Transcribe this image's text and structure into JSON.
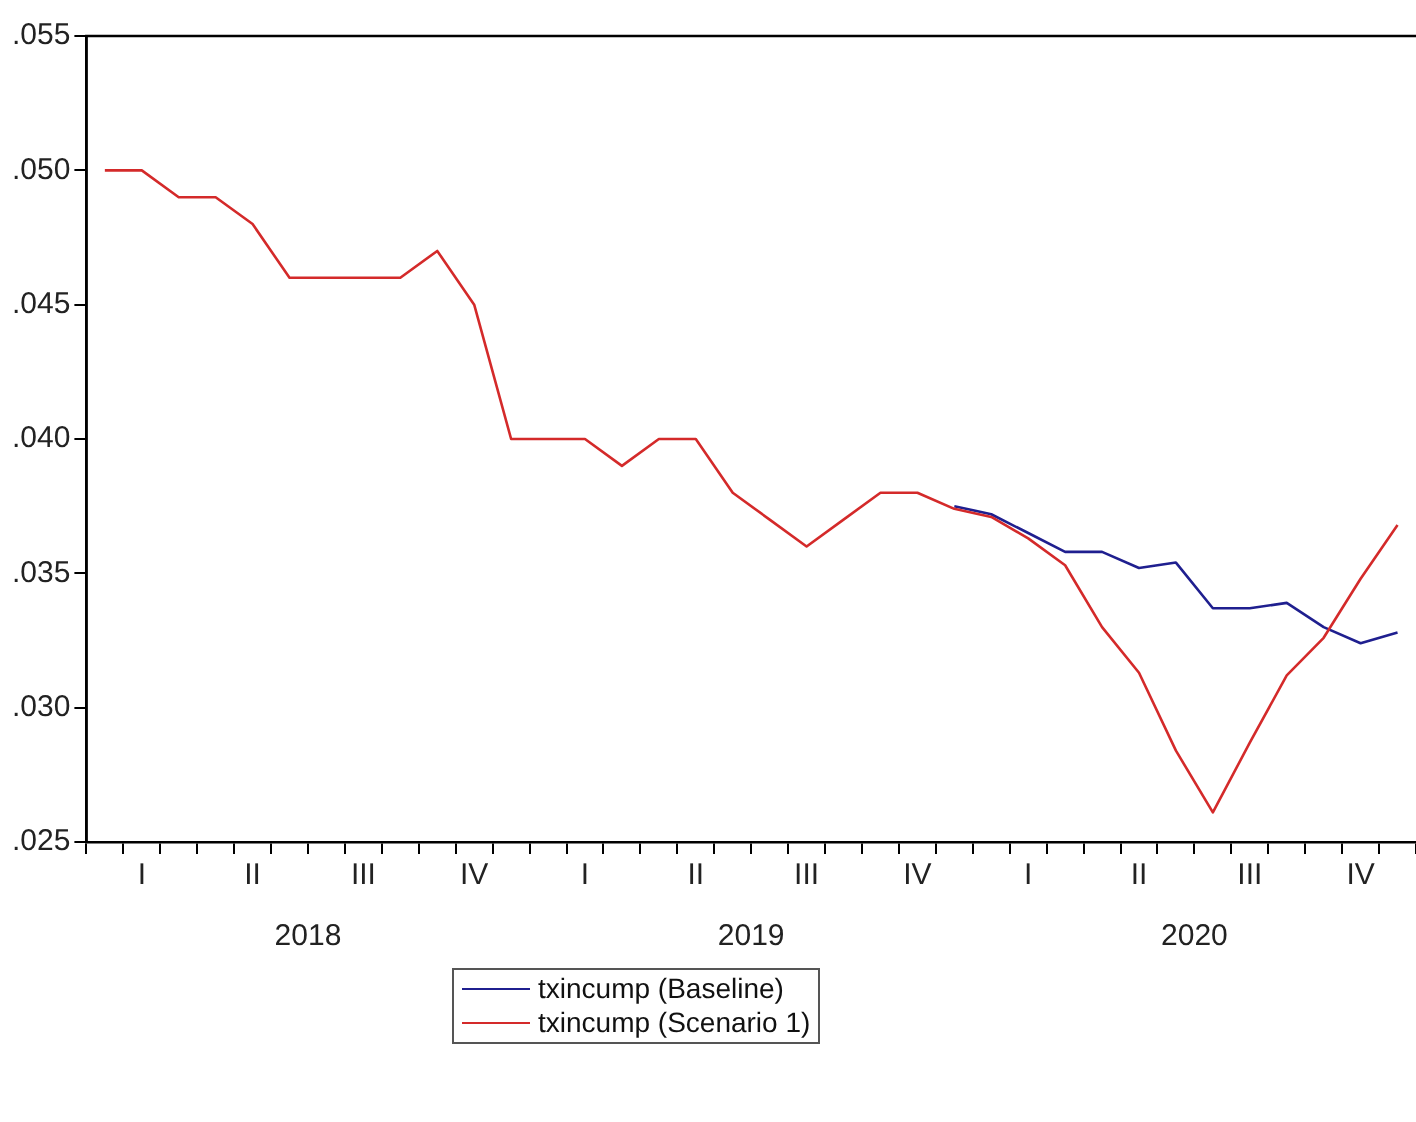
{
  "chart_data": {
    "type": "line",
    "categories": [
      null,
      "I",
      null,
      null,
      "II",
      null,
      null,
      "III",
      null,
      null,
      "IV",
      null,
      null,
      "I",
      null,
      null,
      "II",
      null,
      null,
      "III",
      null,
      null,
      "IV",
      null,
      null,
      "I",
      null,
      null,
      "II",
      null,
      null,
      "III",
      null,
      null,
      "IV",
      null
    ],
    "annotations": [
      "2018",
      "2019",
      "2020"
    ],
    "series": [
      {
        "name": "txincump (Baseline)",
        "color": "#1f1f8f",
        "values": [
          null,
          null,
          null,
          null,
          null,
          null,
          null,
          null,
          null,
          null,
          null,
          null,
          null,
          null,
          null,
          null,
          null,
          null,
          null,
          null,
          null,
          null,
          null,
          0.0375,
          0.0372,
          0.0365,
          0.0358,
          0.0358,
          0.0352,
          0.0354,
          0.0337,
          0.0337,
          0.0339,
          0.033,
          0.0324,
          0.0328
        ]
      },
      {
        "name": "txincump (Scenario 1)",
        "color": "#d42a2a",
        "values": [
          0.05,
          0.05,
          0.049,
          0.049,
          0.048,
          0.046,
          0.046,
          0.046,
          0.046,
          0.047,
          0.045,
          0.04,
          0.04,
          0.04,
          0.039,
          0.04,
          0.04,
          0.038,
          0.037,
          0.036,
          0.037,
          0.038,
          0.038,
          0.0374,
          0.0371,
          0.0363,
          0.0353,
          0.033,
          0.0313,
          0.0284,
          0.0261,
          0.0287,
          0.0312,
          0.0326,
          0.0348,
          0.0368
        ]
      }
    ],
    "ylim": [
      0.025,
      0.055
    ],
    "yticks": [
      {
        "value": 0.025,
        "label": ".025"
      },
      {
        "value": 0.03,
        "label": ".030"
      },
      {
        "value": 0.035,
        "label": ".035"
      },
      {
        "value": 0.04,
        "label": ".040"
      },
      {
        "value": 0.045,
        "label": ".045"
      },
      {
        "value": 0.05,
        "label": ".050"
      },
      {
        "value": 0.055,
        "label": ".055"
      }
    ],
    "grid": false,
    "legend": "bottom",
    "marker": "none",
    "line_style": "solid"
  }
}
